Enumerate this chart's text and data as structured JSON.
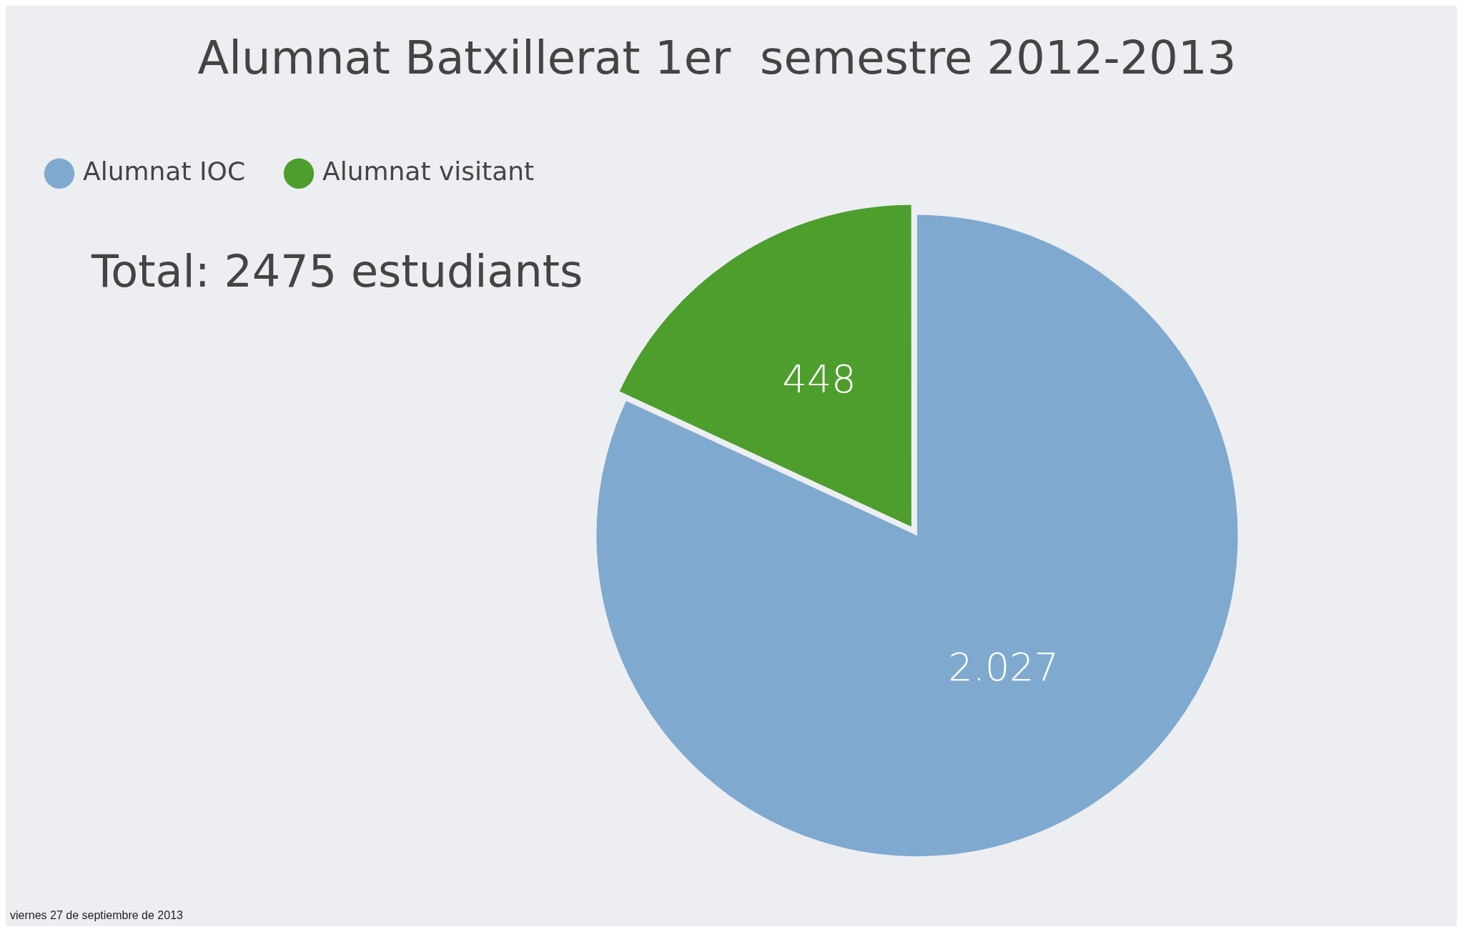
{
  "chart_data": {
    "type": "pie",
    "title": "Alumnat Batxillerat 1er  semestre 2012-2013",
    "categories": [
      "Alumnat IOC",
      "Alumnat visitant"
    ],
    "values": [
      2027,
      448
    ],
    "value_labels": [
      "2.027",
      "448"
    ],
    "colors": [
      "#7fa9cf",
      "#4e9e2e"
    ],
    "legend": "top left",
    "annotations": [
      "Total: 2475 estudiants",
      "viernes 27 de septiembre de 2013"
    ]
  }
}
